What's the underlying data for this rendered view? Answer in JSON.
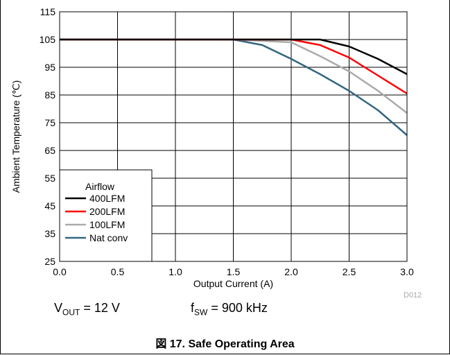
{
  "chart_data": {
    "type": "line",
    "xlabel": "Output Current (A)",
    "ylabel": "Ambient Temperature (℃)",
    "xlim": [
      0.0,
      3.0
    ],
    "ylim": [
      25,
      115
    ],
    "xticks": [
      "0.0",
      "0.5",
      "1.0",
      "1.5",
      "2.0",
      "2.5",
      "3.0"
    ],
    "yticks": [
      "25",
      "35",
      "45",
      "55",
      "65",
      "75",
      "85",
      "95",
      "105",
      "115"
    ],
    "grid": true,
    "legend": {
      "title": "Airflow",
      "position": "bottom-left"
    },
    "series": [
      {
        "name": "400LFM",
        "color": "#000000",
        "x": [
          0.0,
          1.5,
          2.25,
          2.5,
          2.75,
          3.0
        ],
        "y": [
          105,
          105,
          105,
          102.5,
          98,
          92.5
        ]
      },
      {
        "name": "200LFM",
        "color": "#ff0000",
        "x": [
          0.0,
          1.5,
          2.0,
          2.25,
          2.5,
          2.75,
          3.0
        ],
        "y": [
          105,
          105,
          105,
          103,
          98.5,
          92,
          85.5
        ]
      },
      {
        "name": "100LFM",
        "color": "#aaaaaa",
        "x": [
          0.0,
          1.5,
          2.0,
          2.25,
          2.5,
          2.75,
          3.0
        ],
        "y": [
          105,
          105,
          104,
          99,
          93.5,
          86.5,
          78.5
        ]
      },
      {
        "name": "Nat conv",
        "color": "#336680",
        "x": [
          0.0,
          1.5,
          1.75,
          2.0,
          2.25,
          2.5,
          2.75,
          3.0
        ],
        "y": [
          105,
          105,
          103,
          98,
          92.5,
          86.5,
          79.5,
          70.5
        ]
      }
    ]
  },
  "conditions": {
    "vout_symbol": "V",
    "vout_sub": "OUT",
    "vout_value": " = 12 V",
    "fsw_symbol": "f",
    "fsw_sub": "SW",
    "fsw_value": " = 900 kHz"
  },
  "doc_id": "D012",
  "caption": "図 17. Safe Operating Area"
}
